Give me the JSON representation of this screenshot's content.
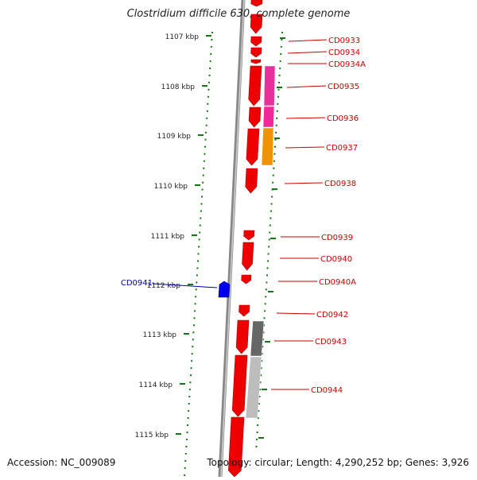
{
  "title": "Clostridium difficile 630, complete genome",
  "footer": {
    "accession": "Accession: NC_009089",
    "summary": "Topology: circular; Length: 4,290,252 bp; Genes: 3,926"
  },
  "scale": {
    "ticks": [
      "1107 kbp",
      "1108 kbp",
      "1109 kbp",
      "1110 kbp",
      "1111 kbp",
      "1112 kbp",
      "1113 kbp",
      "1114 kbp",
      "1115 kbp"
    ]
  },
  "genes_right": [
    "CD0933",
    "CD0934",
    "CD0934A",
    "CD0935",
    "CD0936",
    "CD0937",
    "CD0938",
    "CD0939",
    "CD0940",
    "CD0940A",
    "CD0942",
    "CD0943",
    "CD0944"
  ],
  "genes_left": [
    "CD0941"
  ],
  "colors": {
    "forward_gene": "#ee0000",
    "reverse_gene": "#0000ee",
    "label_right": "#cc0000",
    "label_left": "#0000aa",
    "tick": "#117711",
    "backbone": "#888888",
    "category_magenta": "#e8309a",
    "category_orange": "#f39200",
    "category_gray": "#777777"
  }
}
